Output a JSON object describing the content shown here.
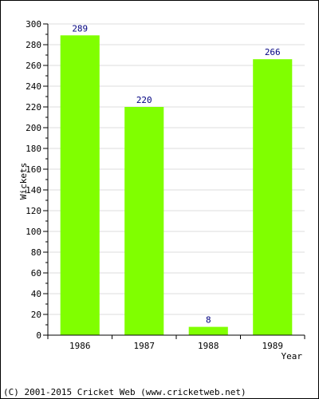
{
  "chart_data": {
    "type": "bar",
    "categories": [
      "1986",
      "1987",
      "1988",
      "1989"
    ],
    "values": [
      289,
      220,
      8,
      266
    ],
    "title": "",
    "xlabel": "Year",
    "ylabel": "Wickets",
    "ylim": [
      0,
      300
    ],
    "yticks": [
      0,
      20,
      40,
      60,
      80,
      100,
      120,
      140,
      160,
      180,
      200,
      220,
      240,
      260,
      280,
      300
    ],
    "grid": true,
    "bar_color": "#80FF00",
    "label_color": "#000080"
  },
  "footer": {
    "copyright": "(C) 2001-2015 Cricket Web (www.cricketweb.net)"
  }
}
